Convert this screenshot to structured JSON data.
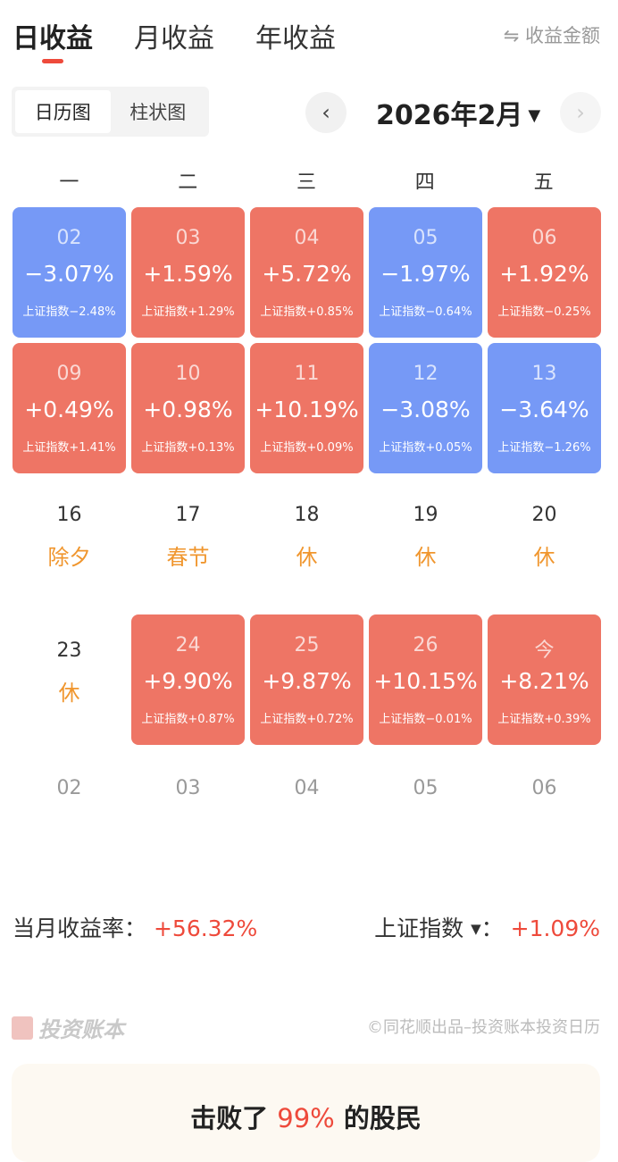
{
  "tabs": [
    "日收益",
    "月收益",
    "年收益"
  ],
  "toggle_amount": "⇋ 收益金额",
  "view_modes": [
    "日历图",
    "柱状图"
  ],
  "month_label": "2026年2月",
  "caret": "▼",
  "prev": "‹",
  "next": "›",
  "weekdays": [
    "一",
    "二",
    "三",
    "四",
    "五"
  ],
  "days": [
    {
      "type": "down",
      "day": "02",
      "pct": "−3.07%",
      "idx": "上证指数−2.48%"
    },
    {
      "type": "up",
      "day": "03",
      "pct": "+1.59%",
      "idx": "上证指数+1.29%"
    },
    {
      "type": "up",
      "day": "04",
      "pct": "+5.72%",
      "idx": "上证指数+0.85%"
    },
    {
      "type": "down",
      "day": "05",
      "pct": "−1.97%",
      "idx": "上证指数−0.64%"
    },
    {
      "type": "up",
      "day": "06",
      "pct": "+1.92%",
      "idx": "上证指数−0.25%"
    },
    {
      "type": "up",
      "day": "09",
      "pct": "+0.49%",
      "idx": "上证指数+1.41%"
    },
    {
      "type": "up",
      "day": "10",
      "pct": "+0.98%",
      "idx": "上证指数+0.13%"
    },
    {
      "type": "up",
      "day": "11",
      "pct": "+10.19%",
      "idx": "上证指数+0.09%"
    },
    {
      "type": "down",
      "day": "12",
      "pct": "−3.08%",
      "idx": "上证指数+0.05%"
    },
    {
      "type": "down",
      "day": "13",
      "pct": "−3.64%",
      "idx": "上证指数−1.26%"
    },
    {
      "type": "plain",
      "day": "16",
      "holiday": "除夕"
    },
    {
      "type": "plain",
      "day": "17",
      "holiday": "春节"
    },
    {
      "type": "plain",
      "day": "18",
      "holiday": "休"
    },
    {
      "type": "plain",
      "day": "19",
      "holiday": "休"
    },
    {
      "type": "plain",
      "day": "20",
      "holiday": "休"
    },
    {
      "type": "plain",
      "day": "23",
      "holiday": "休"
    },
    {
      "type": "up",
      "day": "24",
      "pct": "+9.90%",
      "idx": "上证指数+0.87%"
    },
    {
      "type": "up",
      "day": "25",
      "pct": "+9.87%",
      "idx": "上证指数+0.72%"
    },
    {
      "type": "up",
      "day": "26",
      "pct": "+10.15%",
      "idx": "上证指数−0.01%"
    },
    {
      "type": "up",
      "day": "今",
      "pct": "+8.21%",
      "idx": "上证指数+0.39%"
    },
    {
      "type": "next",
      "day": "02"
    },
    {
      "type": "next",
      "day": "03"
    },
    {
      "type": "next",
      "day": "04"
    },
    {
      "type": "next",
      "day": "05"
    },
    {
      "type": "next",
      "day": "06"
    }
  ],
  "summary": {
    "label": "当月收益率：",
    "value": "+56.32%",
    "index_label": "上证指数",
    "index_caret": "▼",
    "colon": "：",
    "index_value": "+1.09%"
  },
  "footer": {
    "logo": "投资账本",
    "copyright": "©同花顺出品–投资账本投资日历"
  },
  "beat": {
    "pre": "击败了",
    "value": "99%",
    "post": "的股民"
  },
  "colors": {
    "up": "#ee7565",
    "down": "#7699f6",
    "holiday": "#f0962e",
    "accent": "#ee4a3b"
  }
}
